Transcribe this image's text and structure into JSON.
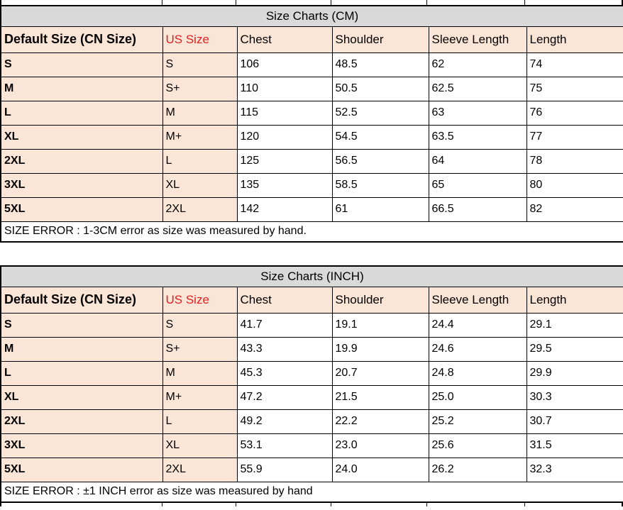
{
  "colors": {
    "header_fill": "#fbe5d6",
    "title_fill": "#d9d9d9",
    "us_size_red": "#e02020",
    "grid_border": "#000000"
  },
  "columns": [
    "Default Size (CN Size)",
    "US Size",
    "Chest",
    "Shoulder",
    "Sleeve Length",
    "Length"
  ],
  "tables": [
    {
      "title": "Size Charts (CM)",
      "rows": [
        [
          "S",
          "S",
          "106",
          "48.5",
          "62",
          "74"
        ],
        [
          "M",
          "S+",
          "110",
          "50.5",
          "62.5",
          "75"
        ],
        [
          "L",
          "M",
          "115",
          "52.5",
          "63",
          "76"
        ],
        [
          "XL",
          "M+",
          "120",
          "54.5",
          "63.5",
          "77"
        ],
        [
          "2XL",
          "L",
          "125",
          "56.5",
          "64",
          "78"
        ],
        [
          "3XL",
          "XL",
          "135",
          "58.5",
          "65",
          "80"
        ],
        [
          "5XL",
          "2XL",
          "142",
          "61",
          "66.5",
          "82"
        ]
      ],
      "footer": "SIZE ERROR : 1-3CM error as size was measured by hand."
    },
    {
      "title": "Size Charts (INCH)",
      "rows": [
        [
          "S",
          "S",
          "41.7",
          "19.1",
          "24.4",
          "29.1"
        ],
        [
          "M",
          "S+",
          "43.3",
          "19.9",
          "24.6",
          "29.5"
        ],
        [
          "L",
          "M",
          "45.3",
          "20.7",
          "24.8",
          "29.9"
        ],
        [
          "XL",
          "M+",
          "47.2",
          "21.5",
          "25.0",
          "30.3"
        ],
        [
          "2XL",
          "L",
          "49.2",
          "22.2",
          "25.2",
          "30.7"
        ],
        [
          "3XL",
          "XL",
          "53.1",
          "23.0",
          "25.6",
          "31.5"
        ],
        [
          "5XL",
          "2XL",
          "55.9",
          "24.0",
          "26.2",
          "32.3"
        ]
      ],
      "footer": "SIZE ERROR : ±1 INCH error as size was measured by hand"
    }
  ]
}
